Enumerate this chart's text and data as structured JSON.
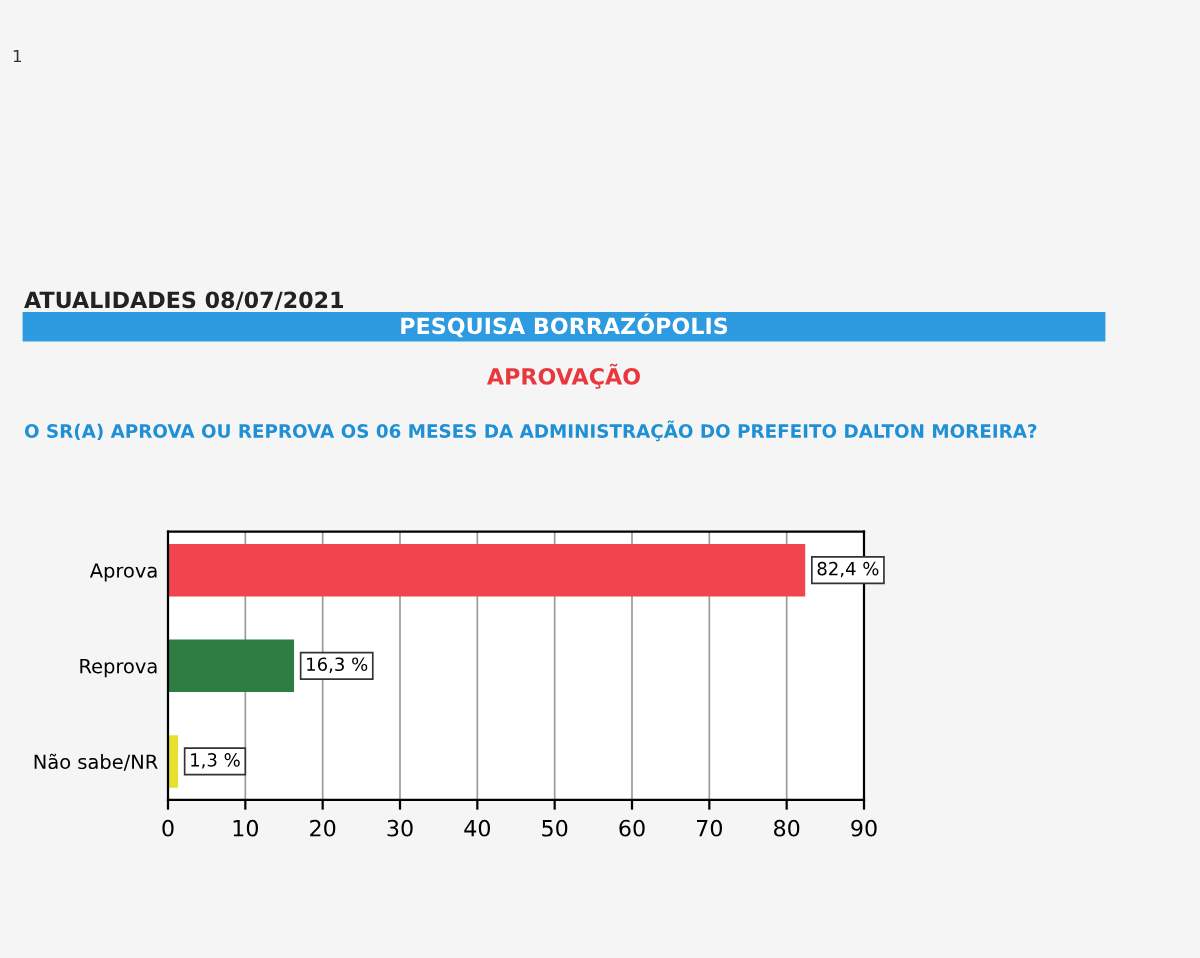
{
  "chart_data": {
    "type": "bar",
    "orientation": "horizontal",
    "title": "PESQUISA BORRAZÓPOLIS",
    "subtitle": "APROVAÇÃO",
    "annotations": [
      "1",
      "ATUALIDADES 08/07/2021",
      "O SR(A) APROVA OU REPROVA OS 06 MESES DA ADMINISTRAÇÃO DO PREFEITO DALTON MOREIRA?"
    ],
    "categories": [
      "Aprova",
      "Reprova",
      "Não sabe/NR"
    ],
    "values": [
      82.4,
      16.3,
      1.3
    ],
    "colors": [
      "#f0444f",
      "#2e7d43",
      "#e6e030"
    ],
    "value_labels": [
      "82,4 %",
      "16,3 %",
      "1,3 %"
    ],
    "xlim": [
      0,
      90
    ],
    "xticks": [
      0,
      10,
      20,
      30,
      40,
      50,
      60,
      70,
      80,
      90
    ],
    "grid": "x",
    "legend": false
  }
}
